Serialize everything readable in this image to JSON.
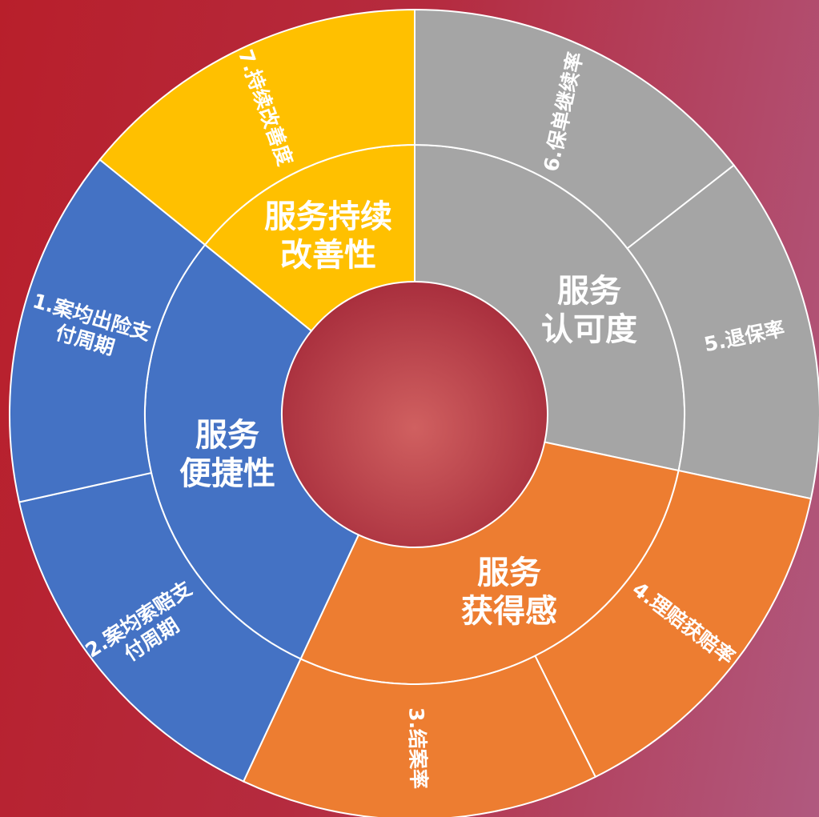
{
  "groups": [
    {
      "label": [
        "服务",
        "认可度"
      ],
      "items": [
        [
          "6.保单继续率"
        ],
        [
          "5.退保率"
        ]
      ]
    },
    {
      "label": [
        "服务",
        "获得感"
      ],
      "items": [
        [
          "4.理赔获赔率"
        ],
        [
          "3.结案率"
        ]
      ]
    },
    {
      "label": [
        "服务",
        "便捷性"
      ],
      "items": [
        [
          "2.案均索赔支",
          "付周期"
        ],
        [
          "1.案均出险支",
          "付周期"
        ]
      ]
    },
    {
      "label": [
        "服务持续",
        "改善性"
      ],
      "items": [
        [
          "7.持续改善度"
        ]
      ]
    }
  ]
}
